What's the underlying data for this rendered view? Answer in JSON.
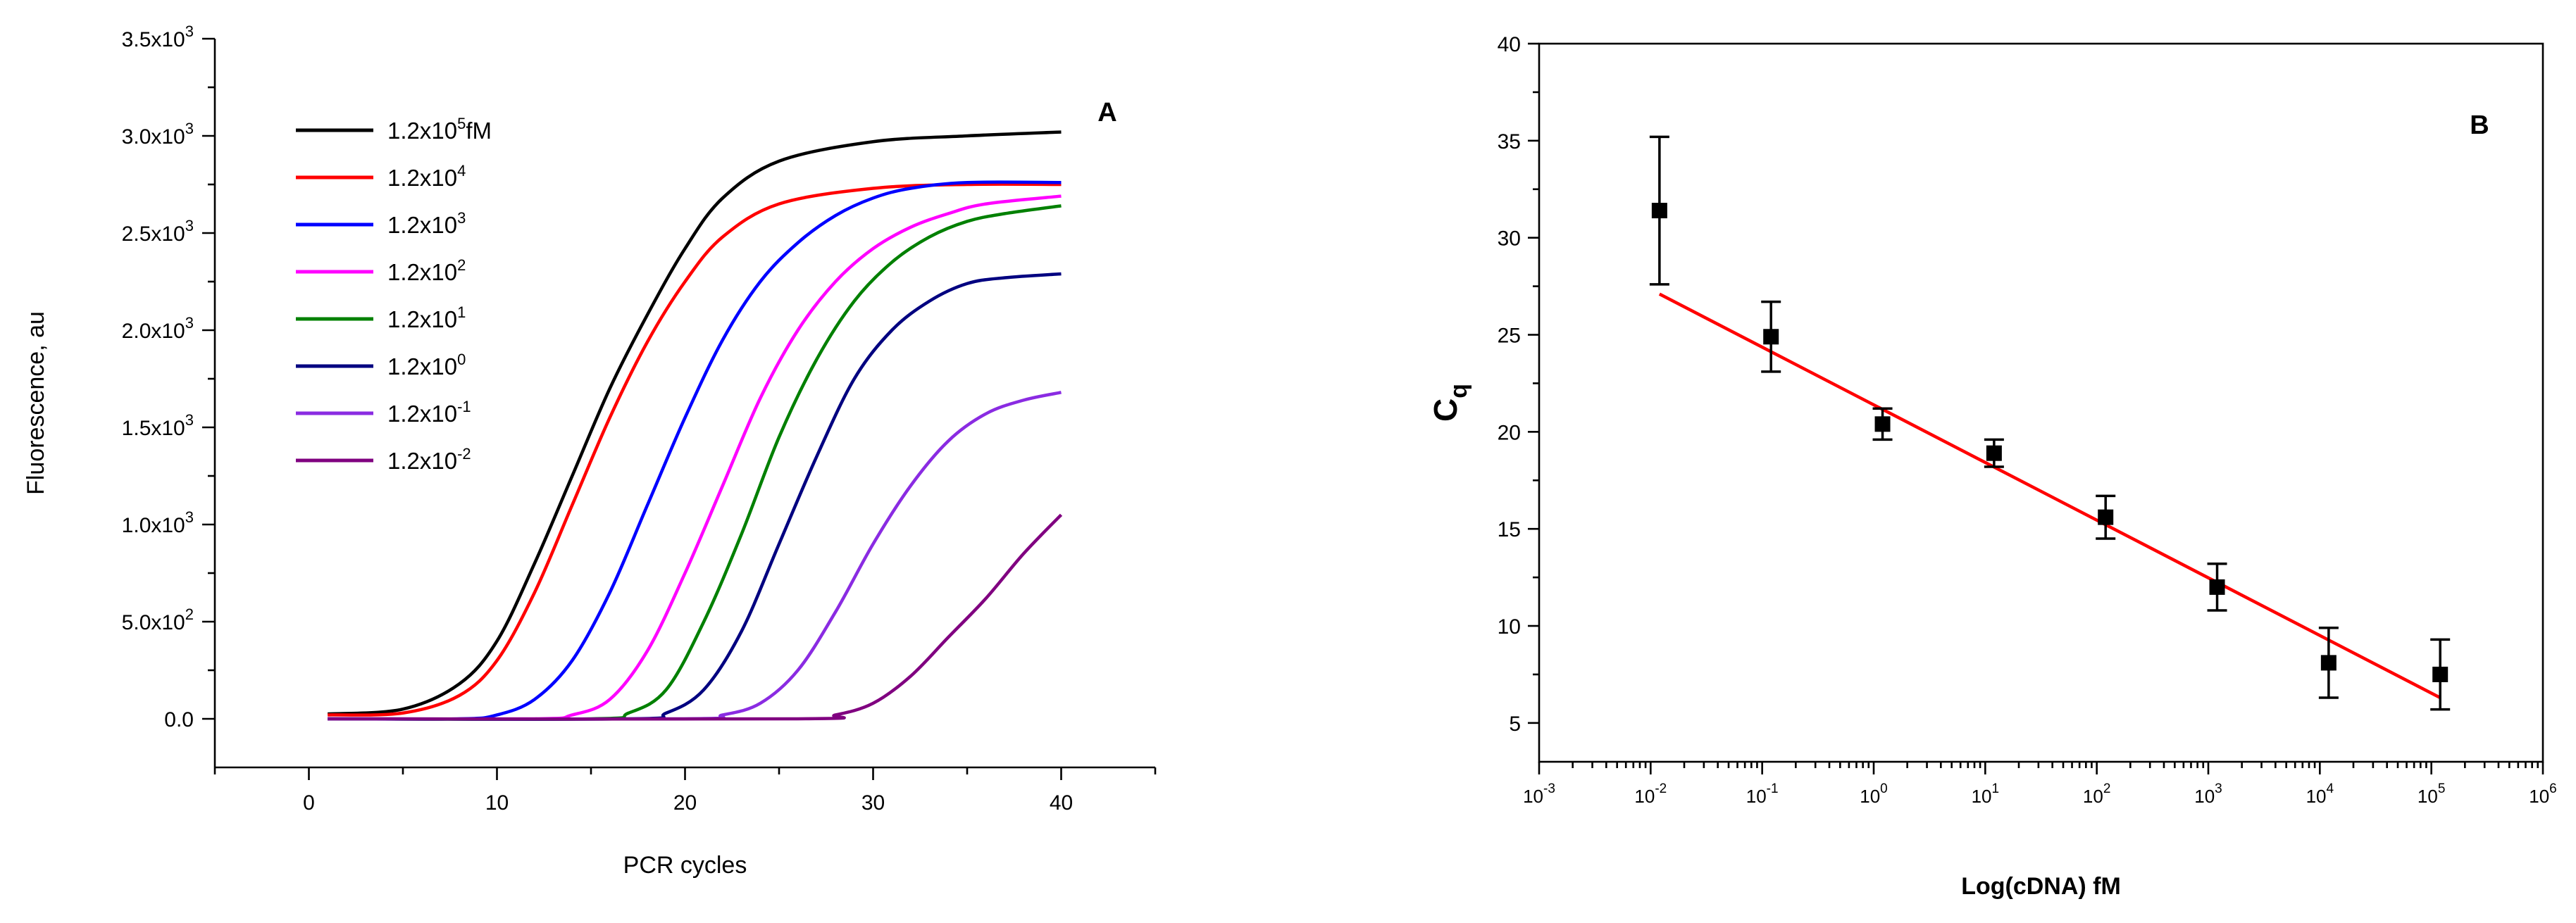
{
  "chart_data": [
    {
      "type": "line",
      "panel_label": "A",
      "xlabel": "PCR cycles",
      "ylabel": "Fluorescence, au",
      "xlim": [
        -5,
        45
      ],
      "ylim": [
        -250,
        3500
      ],
      "x_ticks": [
        0,
        10,
        20,
        30,
        40
      ],
      "x_tick_labels": [
        "0",
        "10",
        "20",
        "30",
        "40"
      ],
      "y_ticks": [
        0,
        500,
        1000,
        1500,
        2000,
        2500,
        3000,
        3500
      ],
      "y_tick_labels": [
        {
          "mant": "0.0",
          "exp": ""
        },
        {
          "mant": "5.0x10",
          "exp": "2"
        },
        {
          "mant": "1.0x10",
          "exp": "3"
        },
        {
          "mant": "1.5x10",
          "exp": "3"
        },
        {
          "mant": "2.0x10",
          "exp": "3"
        },
        {
          "mant": "2.5x10",
          "exp": "3"
        },
        {
          "mant": "3.0x10",
          "exp": "3"
        },
        {
          "mant": "3.5x10",
          "exp": "3"
        }
      ],
      "legend_position": "top-left",
      "series": [
        {
          "name": "1.2x10^5fM",
          "label_mant": "1.2x10",
          "label_exp": "5",
          "label_suffix": "fM",
          "color": "#000000",
          "x": [
            1,
            5,
            8,
            10,
            12,
            14,
            16,
            18,
            20,
            22,
            25,
            30,
            35,
            40
          ],
          "y": [
            25,
            50,
            180,
            400,
            800,
            1250,
            1700,
            2080,
            2420,
            2680,
            2870,
            2970,
            3000,
            3020
          ]
        },
        {
          "name": "1.2x10^4",
          "label_mant": "1.2x10",
          "label_exp": "4",
          "label_suffix": "",
          "color": "#ff0000",
          "x": [
            1,
            5,
            8,
            10,
            12,
            14,
            16,
            18,
            20,
            22,
            25,
            30,
            35,
            40
          ],
          "y": [
            20,
            30,
            120,
            300,
            650,
            1100,
            1550,
            1940,
            2250,
            2480,
            2650,
            2730,
            2750,
            2750
          ]
        },
        {
          "name": "1.2x10^3",
          "label_mant": "1.2x10",
          "label_exp": "3",
          "label_suffix": "",
          "color": "#0000ff",
          "x": [
            1,
            8,
            10,
            12,
            14,
            16,
            18,
            20,
            22,
            24,
            26,
            28,
            30,
            32,
            35,
            40
          ],
          "y": [
            0,
            0,
            20,
            100,
            300,
            650,
            1100,
            1550,
            1950,
            2250,
            2450,
            2590,
            2680,
            2730,
            2760,
            2760
          ]
        },
        {
          "name": "1.2x10^2",
          "label_mant": "1.2x10",
          "label_exp": "2",
          "label_suffix": "",
          "color": "#ff00ff",
          "x": [
            1,
            12,
            14,
            16,
            18,
            20,
            22,
            24,
            26,
            28,
            30,
            32,
            34,
            36,
            40
          ],
          "y": [
            0,
            0,
            20,
            100,
            350,
            750,
            1200,
            1650,
            2000,
            2250,
            2420,
            2530,
            2600,
            2650,
            2690
          ]
        },
        {
          "name": "1.2x10^1",
          "label_mant": "1.2x10",
          "label_exp": "1",
          "label_suffix": "",
          "color": "#008000",
          "x": [
            1,
            15,
            17,
            19,
            21,
            23,
            25,
            27,
            29,
            31,
            33,
            35,
            37,
            40
          ],
          "y": [
            0,
            0,
            30,
            150,
            500,
            950,
            1450,
            1850,
            2150,
            2350,
            2480,
            2560,
            2600,
            2640
          ]
        },
        {
          "name": "1.2x10^0",
          "label_mant": "1.2x10",
          "label_exp": "0",
          "label_suffix": "",
          "color": "#000080",
          "x": [
            1,
            17,
            19,
            21,
            23,
            25,
            27,
            29,
            31,
            33,
            35,
            37,
            40
          ],
          "y": [
            0,
            0,
            30,
            150,
            450,
            900,
            1350,
            1750,
            2000,
            2150,
            2240,
            2270,
            2290
          ]
        },
        {
          "name": "1.2x10^-1",
          "label_mant": "1.2x10",
          "label_exp": "-1",
          "label_suffix": "",
          "color": "#8a2be2",
          "x": [
            1,
            20,
            22,
            24,
            26,
            28,
            30,
            32,
            34,
            36,
            38,
            40
          ],
          "y": [
            0,
            0,
            20,
            80,
            250,
            550,
            900,
            1200,
            1430,
            1570,
            1640,
            1680
          ]
        },
        {
          "name": "1.2x10^-2",
          "label_mant": "1.2x10",
          "label_exp": "-2",
          "label_suffix": "",
          "color": "#800080",
          "x": [
            1,
            26,
            28,
            30,
            32,
            34,
            36,
            38,
            40
          ],
          "y": [
            0,
            0,
            20,
            80,
            220,
            420,
            620,
            850,
            1050
          ]
        }
      ]
    },
    {
      "type": "scatter",
      "panel_label": "B",
      "xlabel": "Log(cDNA) fM",
      "ylabel_main": "C",
      "ylabel_sub": "q",
      "x_scale": "log",
      "xlim": [
        0.001,
        1000000
      ],
      "ylim": [
        3,
        40
      ],
      "x_tick_exps": [
        -3,
        -2,
        -1,
        0,
        1,
        2,
        3,
        4,
        5,
        6
      ],
      "y_ticks": [
        5,
        10,
        15,
        20,
        25,
        30,
        35,
        40
      ],
      "y_tick_labels": [
        "5",
        "10",
        "15",
        "20",
        "25",
        "30",
        "35",
        "40"
      ],
      "series": [
        {
          "x": [
            0.012,
            0.12,
            1.2,
            12,
            120,
            1200,
            12000,
            120000
          ],
          "y": [
            31.4,
            24.9,
            20.4,
            18.9,
            15.6,
            12.0,
            8.1,
            7.5
          ],
          "error": [
            3.8,
            1.8,
            0.8,
            0.7,
            1.1,
            1.2,
            1.8,
            1.8
          ],
          "color": "#000000"
        }
      ],
      "fit_line": {
        "x": [
          0.012,
          120000
        ],
        "y": [
          27.1,
          6.3
        ],
        "color": "#ff0000"
      }
    }
  ]
}
